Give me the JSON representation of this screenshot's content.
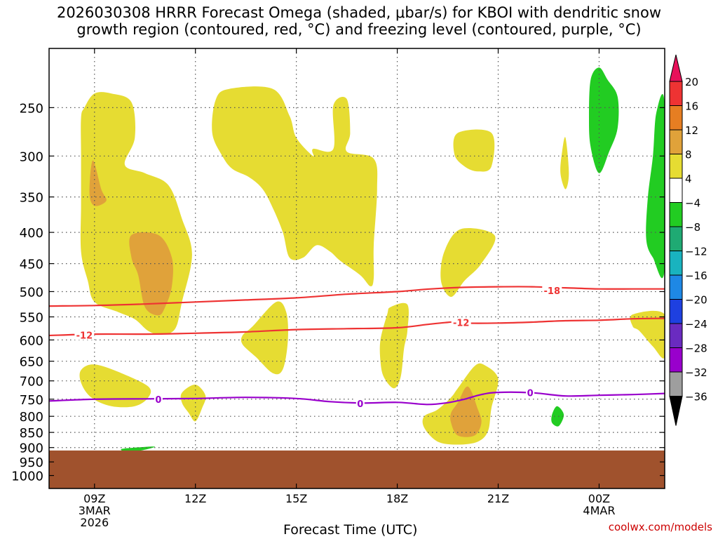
{
  "title_line1": "2026030308 HRRR Forecast Omega (shaded, μbar/s) for KBOI with dendritic snow",
  "title_line2": "growth region (contoured, red, °C) and freezing level (contoured, purple, °C)",
  "credit": "coolwx.com/models",
  "chart_data": {
    "type": "contour",
    "title": "2026030308 HRRR Forecast Omega (shaded, μbar/s) for KBOI with dendritic snow growth region (contoured, red, °C) and freezing level (contoured, purple, °C)",
    "xlabel": "Forecast Time (UTC)",
    "ylabel": "",
    "x_range_hours": [
      7.65,
      25.95
    ],
    "y_range_mb": [
      200,
      1050
    ],
    "x_ticks": [
      {
        "hour": 9,
        "lines": [
          "09Z",
          "3MAR",
          "2026"
        ]
      },
      {
        "hour": 12,
        "lines": [
          "12Z"
        ]
      },
      {
        "hour": 15,
        "lines": [
          "15Z"
        ]
      },
      {
        "hour": 18,
        "lines": [
          "18Z"
        ]
      },
      {
        "hour": 21,
        "lines": [
          "21Z"
        ]
      },
      {
        "hour": 24,
        "lines": [
          "00Z",
          "4MAR"
        ]
      }
    ],
    "y_ticks": [
      250,
      300,
      350,
      400,
      450,
      500,
      550,
      600,
      650,
      700,
      750,
      800,
      850,
      900,
      950,
      1000
    ],
    "grid": "dotted",
    "terrain_top_mb": 910,
    "terrain_color": "#a0522d",
    "contours": [
      {
        "name": "-18 °C isotherm",
        "color": "#ee3333",
        "label": "-18",
        "label_hour": 22.6,
        "points": [
          [
            7.65,
            528
          ],
          [
            9,
            527
          ],
          [
            10.5,
            524
          ],
          [
            12,
            520
          ],
          [
            13.5,
            516
          ],
          [
            15,
            512
          ],
          [
            16.5,
            505
          ],
          [
            18,
            500
          ],
          [
            19,
            495
          ],
          [
            20,
            492
          ],
          [
            21,
            491
          ],
          [
            22,
            491
          ],
          [
            23,
            493
          ],
          [
            24,
            495
          ],
          [
            25,
            495
          ],
          [
            25.95,
            495
          ]
        ]
      },
      {
        "name": "-12 °C isotherm",
        "color": "#ee3333",
        "label": "-12",
        "label_hour": 8.7,
        "points": [
          [
            7.65,
            590
          ],
          [
            9,
            587
          ],
          [
            10.5,
            587
          ],
          [
            12,
            585
          ],
          [
            13.5,
            582
          ],
          [
            15,
            577
          ],
          [
            16.5,
            575
          ],
          [
            18,
            573
          ],
          [
            19,
            565
          ],
          [
            19.8,
            560
          ],
          [
            20,
            563
          ],
          [
            21,
            563
          ],
          [
            22,
            561
          ],
          [
            23,
            558
          ],
          [
            24,
            557
          ],
          [
            25,
            554
          ],
          [
            25.95,
            553
          ]
        ]
      },
      {
        "name": "0 °C freezing level",
        "color": "#9900cc",
        "label": "0",
        "label_hour": 10.9,
        "points": [
          [
            7.65,
            755
          ],
          [
            9,
            750
          ],
          [
            10.5,
            749
          ],
          [
            12,
            748
          ],
          [
            13.5,
            745
          ],
          [
            15,
            748
          ],
          [
            16,
            757
          ],
          [
            17,
            761
          ],
          [
            18,
            759
          ],
          [
            18.9,
            765
          ],
          [
            19.5,
            760
          ],
          [
            20,
            750
          ],
          [
            20.5,
            737
          ],
          [
            21,
            731
          ],
          [
            22,
            732
          ],
          [
            23,
            741
          ],
          [
            24,
            739
          ],
          [
            25,
            737
          ],
          [
            25.95,
            734
          ]
        ]
      }
    ],
    "contour_labels": [
      {
        "text": "-18",
        "hour": 22.6,
        "mb": 498,
        "color": "#ee3333"
      },
      {
        "text": "-12",
        "hour": 8.7,
        "mb": 589,
        "color": "#ee3333"
      },
      {
        "text": "-12",
        "hour": 19.9,
        "mb": 562,
        "color": "#ee3333"
      },
      {
        "text": "0",
        "hour": 10.9,
        "mb": 750,
        "color": "#9900cc"
      },
      {
        "text": "0",
        "hour": 16.9,
        "mb": 762,
        "color": "#9900cc"
      },
      {
        "text": "0",
        "hour": 21.95,
        "mb": 732,
        "color": "#9900cc"
      }
    ],
    "shaded_regions": [
      {
        "name": "yellow-09z-column",
        "level": "4 to 8",
        "color": "#e6dc32",
        "points": [
          [
            8.7,
            250
          ],
          [
            9,
            237
          ],
          [
            9.5,
            237
          ],
          [
            10.1,
            245
          ],
          [
            10.2,
            280
          ],
          [
            9.9,
            310
          ],
          [
            10.5,
            320
          ],
          [
            11.2,
            335
          ],
          [
            11.6,
            380
          ],
          [
            11.9,
            435
          ],
          [
            11.6,
            520
          ],
          [
            11.4,
            575
          ],
          [
            11,
            588
          ],
          [
            10.6,
            580
          ],
          [
            10.2,
            555
          ],
          [
            9.7,
            540
          ],
          [
            9,
            520
          ],
          [
            8.8,
            480
          ],
          [
            8.6,
            430
          ],
          [
            8.6,
            360
          ],
          [
            8.6,
            300
          ],
          [
            8.6,
            260
          ]
        ]
      },
      {
        "name": "orange-upper-spot",
        "level": "8 to 12",
        "color": "#e0a23a",
        "points": [
          [
            8.95,
            305
          ],
          [
            9.2,
            340
          ],
          [
            9.35,
            355
          ],
          [
            9.0,
            362
          ],
          [
            8.85,
            345
          ]
        ]
      },
      {
        "name": "orange-mid-blob",
        "level": "8 to 12",
        "color": "#e0a23a",
        "points": [
          [
            10.1,
            404
          ],
          [
            10.9,
            404
          ],
          [
            11.3,
            440
          ],
          [
            11.3,
            490
          ],
          [
            11.1,
            530
          ],
          [
            10.9,
            547
          ],
          [
            10.5,
            530
          ],
          [
            10.3,
            470
          ],
          [
            10.1,
            440
          ]
        ]
      },
      {
        "name": "yellow-13z-16z-blob",
        "level": "4 to 8",
        "color": "#e6dc32",
        "points": [
          [
            12.6,
            243
          ],
          [
            13,
            233
          ],
          [
            14.3,
            233
          ],
          [
            14.8,
            258
          ],
          [
            15,
            280
          ],
          [
            15.5,
            300
          ],
          [
            15.5,
            292
          ],
          [
            16.1,
            292
          ],
          [
            16.1,
            248
          ],
          [
            16.5,
            242
          ],
          [
            16.6,
            275
          ],
          [
            16.5,
            295
          ],
          [
            17.3,
            303
          ],
          [
            17.4,
            340
          ],
          [
            17.3,
            420
          ],
          [
            17.3,
            475
          ],
          [
            17.2,
            490
          ],
          [
            16.9,
            470
          ],
          [
            16.3,
            445
          ],
          [
            16,
            430
          ],
          [
            15.6,
            420
          ],
          [
            15.2,
            440
          ],
          [
            14.8,
            440
          ],
          [
            14.6,
            400
          ],
          [
            14.3,
            365
          ],
          [
            14,
            340
          ],
          [
            13.6,
            325
          ],
          [
            13.1,
            315
          ],
          [
            12.8,
            300
          ],
          [
            12.5,
            275
          ]
        ]
      },
      {
        "name": "yellow-300mb-21z",
        "level": "4 to 8",
        "color": "#e6dc32",
        "points": [
          [
            19.8,
            275
          ],
          [
            20.8,
            275
          ],
          [
            20.8,
            312
          ],
          [
            20.4,
            318
          ],
          [
            20,
            312
          ],
          [
            19.7,
            298
          ]
        ]
      },
      {
        "name": "yellow-450mb-20z",
        "level": "4 to 8",
        "color": "#e6dc32",
        "points": [
          [
            19.9,
            395
          ],
          [
            20.9,
            405
          ],
          [
            20.5,
            450
          ],
          [
            20,
            480
          ],
          [
            19.6,
            510
          ],
          [
            19.3,
            480
          ],
          [
            19.4,
            430
          ]
        ]
      },
      {
        "name": "yellow-2330z-sliver",
        "level": "4 to 8",
        "color": "#e6dc32",
        "points": [
          [
            23,
            280
          ],
          [
            23.1,
            320
          ],
          [
            23,
            340
          ],
          [
            22.85,
            320
          ],
          [
            22.9,
            295
          ]
        ]
      },
      {
        "name": "yellow-14z-low-blob",
        "level": "4 to 8",
        "color": "#e6dc32",
        "points": [
          [
            13.7,
            570
          ],
          [
            14.4,
            520
          ],
          [
            14.7,
            540
          ],
          [
            14.75,
            600
          ],
          [
            14.6,
            670
          ],
          [
            14.3,
            680
          ],
          [
            13.8,
            640
          ],
          [
            13.4,
            610
          ],
          [
            13.4,
            590
          ]
        ]
      },
      {
        "name": "yellow-18z-blob",
        "level": "4 to 8",
        "color": "#e6dc32",
        "points": [
          [
            17.7,
            545
          ],
          [
            17.8,
            530
          ],
          [
            18.3,
            525
          ],
          [
            18.3,
            580
          ],
          [
            18.2,
            620
          ],
          [
            18.1,
            690
          ],
          [
            17.9,
            720
          ],
          [
            17.6,
            690
          ],
          [
            17.5,
            650
          ],
          [
            17.5,
            600
          ]
        ]
      },
      {
        "name": "yellow-09z-low-blob",
        "level": "4 to 8",
        "color": "#e6dc32",
        "points": [
          [
            8.6,
            672
          ],
          [
            9,
            658
          ],
          [
            9.8,
            680
          ],
          [
            10.6,
            715
          ],
          [
            10.6,
            745
          ],
          [
            10.2,
            770
          ],
          [
            9.5,
            770
          ],
          [
            8.9,
            745
          ],
          [
            8.6,
            705
          ]
        ]
      },
      {
        "name": "yellow-12z-small-blob",
        "level": "4 to 8",
        "color": "#e6dc32",
        "points": [
          [
            11.6,
            732
          ],
          [
            12,
            710
          ],
          [
            12.3,
            740
          ],
          [
            12.2,
            775
          ],
          [
            12,
            815
          ],
          [
            11.8,
            790
          ],
          [
            11.6,
            760
          ]
        ]
      },
      {
        "name": "yellow-20z-blob",
        "level": "4 to 8",
        "color": "#e6dc32",
        "points": [
          [
            19.6,
            745
          ],
          [
            19.8,
            720
          ],
          [
            20.3,
            662
          ],
          [
            20.6,
            660
          ],
          [
            21,
            695
          ],
          [
            20.8,
            775
          ],
          [
            20.7,
            845
          ],
          [
            20.4,
            880
          ],
          [
            19.8,
            890
          ],
          [
            19.2,
            880
          ],
          [
            18.8,
            835
          ],
          [
            18.8,
            800
          ],
          [
            19.2,
            780
          ]
        ]
      },
      {
        "name": "orange-20z-blob",
        "level": "8 to 12",
        "color": "#e0a23a",
        "points": [
          [
            19.8,
            760
          ],
          [
            20.1,
            715
          ],
          [
            20.4,
            780
          ],
          [
            20.5,
            820
          ],
          [
            20.3,
            860
          ],
          [
            19.8,
            860
          ],
          [
            19.6,
            820
          ],
          [
            19.6,
            790
          ]
        ]
      },
      {
        "name": "yellow-right-edge-blob",
        "level": "4 to 8",
        "color": "#e6dc32",
        "points": [
          [
            25,
            545
          ],
          [
            25.95,
            545
          ],
          [
            25.95,
            640
          ],
          [
            25.6,
            615
          ],
          [
            25.2,
            580
          ],
          [
            25,
            570
          ]
        ]
      },
      {
        "name": "green-2330z-upper",
        "level": "-8 to -4",
        "color": "#22cc22",
        "points": [
          [
            23.75,
            225
          ],
          [
            24,
            215
          ],
          [
            24.25,
            225
          ],
          [
            24.55,
            240
          ],
          [
            24.55,
            270
          ],
          [
            24.3,
            295
          ],
          [
            24,
            320
          ],
          [
            23.75,
            290
          ],
          [
            23.7,
            260
          ]
        ]
      },
      {
        "name": "green-right-edge",
        "level": "-8 to -4",
        "color": "#22cc22",
        "points": [
          [
            25.95,
            248
          ],
          [
            25.7,
            255
          ],
          [
            25.6,
            300
          ],
          [
            25.45,
            350
          ],
          [
            25.4,
            410
          ],
          [
            25.6,
            440
          ],
          [
            25.95,
            458
          ]
        ]
      },
      {
        "name": "green-22z-small",
        "level": "-8 to -4",
        "color": "#22cc22",
        "points": [
          [
            22.6,
            795
          ],
          [
            22.75,
            770
          ],
          [
            22.95,
            795
          ],
          [
            22.8,
            830
          ],
          [
            22.6,
            820
          ]
        ]
      },
      {
        "name": "green-10z-small",
        "level": "-8 to -4",
        "color": "#22cc22",
        "points": [
          [
            10.2,
            900
          ],
          [
            10.8,
            897
          ],
          [
            10.3,
            912
          ],
          [
            9.9,
            913
          ],
          [
            9.8,
            905
          ]
        ]
      }
    ],
    "colorbar": {
      "levels": [
        20,
        16,
        12,
        8,
        4,
        -4,
        -8,
        -12,
        -16,
        -20,
        -24,
        -28,
        -32,
        -36
      ],
      "colors": [
        "#e8115a",
        "#ee3333",
        "#e67e22",
        "#e0a23a",
        "#e6dc32",
        "#ffffff",
        "#22cc22",
        "#1faa73",
        "#19b3bf",
        "#1e88e5",
        "#1e40e0",
        "#6a2bc0",
        "#9900cc",
        "#9e9e9e",
        "#000000"
      ]
    }
  }
}
